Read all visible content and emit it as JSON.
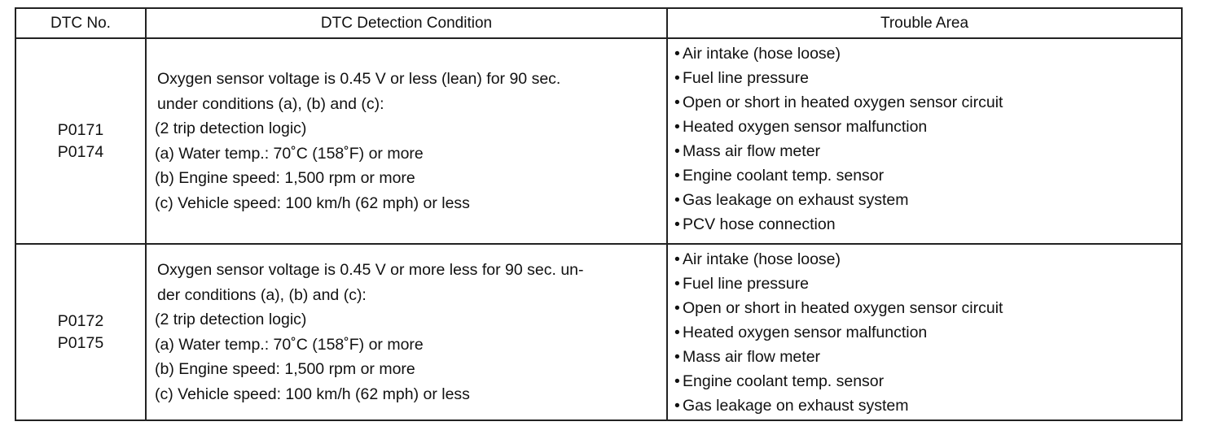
{
  "headers": {
    "dtc_no": "DTC No.",
    "condition": "DTC Detection Condition",
    "area": "Trouble Area"
  },
  "rows": [
    {
      "codes": [
        "P0171",
        "P0174"
      ],
      "condition": [
        "Oxygen sensor voltage is 0.45 V or less (lean) for 90 sec.",
        "under conditions (a), (b) and (c):",
        "(2 trip detection logic)",
        "(a) Water temp.: 70˚C (158˚F) or more",
        "(b) Engine speed: 1,500 rpm or more",
        "(c) Vehicle speed: 100 km/h (62 mph) or less"
      ],
      "areas": [
        "Air intake (hose loose)",
        "Fuel line pressure",
        "Open or short in heated oxygen sensor circuit",
        "Heated oxygen sensor malfunction",
        "Mass air flow meter",
        "Engine coolant temp. sensor",
        "Gas leakage on exhaust system",
        "PCV hose connection"
      ]
    },
    {
      "codes": [
        "P0172",
        "P0175"
      ],
      "condition": [
        "Oxygen sensor voltage is 0.45 V or more less for 90 sec. un-",
        "der conditions (a), (b) and (c):",
        "(2 trip detection logic)",
        "(a) Water temp.: 70˚C (158˚F) or more",
        "(b) Engine speed: 1,500 rpm or more",
        "(c) Vehicle speed: 100 km/h (62 mph) or less"
      ],
      "areas": [
        "Air intake (hose loose)",
        "Fuel line pressure",
        "Open or short in heated oxygen sensor circuit",
        "Heated oxygen sensor malfunction",
        "Mass air flow meter",
        "Engine coolant temp. sensor",
        "Gas leakage on exhaust system"
      ]
    }
  ],
  "bullet": "•"
}
